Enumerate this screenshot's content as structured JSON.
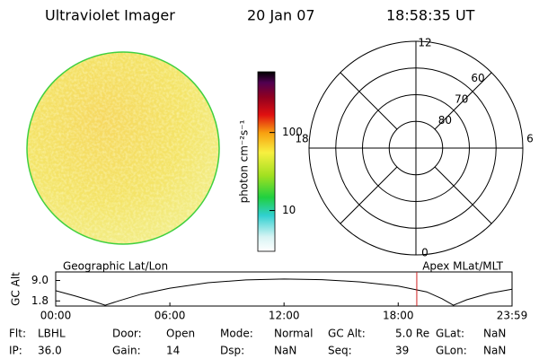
{
  "header": {
    "title": "Ultraviolet Imager",
    "date": "20 Jan 07",
    "time": "18:58:35 UT"
  },
  "colorbar": {
    "label": "photon cm⁻²s⁻¹",
    "scale": "log",
    "lim": [
      3,
      600
    ],
    "ticks": [
      10,
      100
    ]
  },
  "polar": {
    "mlt_labels": [
      12,
      18,
      6,
      0
    ],
    "mlat_rings": [
      80,
      70,
      60
    ],
    "mlat_limit": 50
  },
  "strip": {
    "left_label": "Geographic Lat/Lon",
    "right_label": "Apex MLat/MLT",
    "ylabel": "GC Alt",
    "ylim": [
      0,
      12
    ],
    "yticks": [
      {
        "value": 9.0,
        "label": "9.0"
      },
      {
        "value": 1.8,
        "label": "1.8"
      }
    ],
    "xlim": [
      0,
      23.983
    ],
    "xticks": [
      {
        "value": 0,
        "label": "00:00"
      },
      {
        "value": 6,
        "label": "06:00"
      },
      {
        "value": 12,
        "label": "12:00"
      },
      {
        "value": 18,
        "label": "18:00"
      },
      {
        "value": 23.983,
        "label": "23:59"
      }
    ],
    "x": [
      0,
      1,
      2,
      2.6,
      3.3,
      4.5,
      6,
      8,
      10,
      12,
      14,
      16,
      18,
      19.5,
      20.3,
      20.9,
      21.6,
      22.8,
      23.983
    ],
    "values": [
      5.4,
      3.6,
      1.6,
      0.3,
      1.8,
      4.2,
      6.3,
      8.2,
      9.2,
      9.5,
      9.3,
      8.5,
      7.0,
      5.0,
      2.6,
      0.3,
      2.2,
      4.5,
      5.9
    ],
    "marker_time": 18.976,
    "marker_color": "#d02020"
  },
  "info": [
    [
      {
        "label": "Flt:",
        "value": "LBHL"
      },
      {
        "label": "Door:",
        "value": "Open"
      },
      {
        "label": "Mode:",
        "value": "Normal"
      },
      {
        "label": "GC Alt:",
        "value": "5.0 Re"
      },
      {
        "label": "GLat:",
        "value": "NaN"
      }
    ],
    [
      {
        "label": "IP:",
        "value": "36.0"
      },
      {
        "label": "Gain:",
        "value": "14"
      },
      {
        "label": "Dsp:",
        "value": "NaN"
      },
      {
        "label": "Seq:",
        "value": "39"
      },
      {
        "label": "GLon:",
        "value": "NaN"
      }
    ]
  ]
}
